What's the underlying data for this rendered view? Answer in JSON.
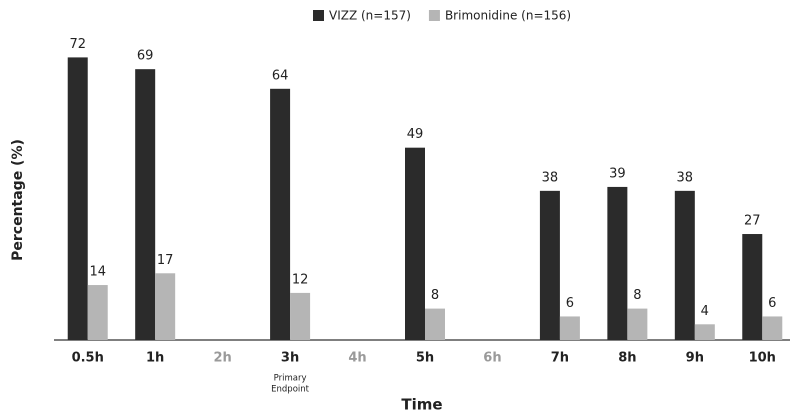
{
  "chart_data": {
    "type": "bar",
    "y_label": "Percentage (%)",
    "x_label": "Time",
    "categories": [
      "0.5h",
      "1h",
      "2h",
      "3h",
      "4h",
      "5h",
      "6h",
      "7h",
      "8h",
      "9h",
      "10h"
    ],
    "category_label_colors": [
      "#222222",
      "#222222",
      "#9a9a9a",
      "#222222",
      "#9a9a9a",
      "#222222",
      "#9a9a9a",
      "#222222",
      "#222222",
      "#222222",
      "#222222"
    ],
    "series": [
      {
        "name": "VIZZ (n=157)",
        "color": "#2b2b2b",
        "values": [
          72,
          69,
          null,
          64,
          null,
          49,
          null,
          38,
          39,
          38,
          27
        ]
      },
      {
        "name": "Brimonidine (n=156)",
        "color": "#b5b5b5",
        "values": [
          14,
          17,
          null,
          12,
          null,
          8,
          null,
          6,
          8,
          4,
          6
        ]
      }
    ],
    "annotation": {
      "category": "3h",
      "lines": [
        "Primary",
        "Endpoint"
      ]
    },
    "ylim": [
      0,
      80
    ],
    "legend": "top"
  }
}
